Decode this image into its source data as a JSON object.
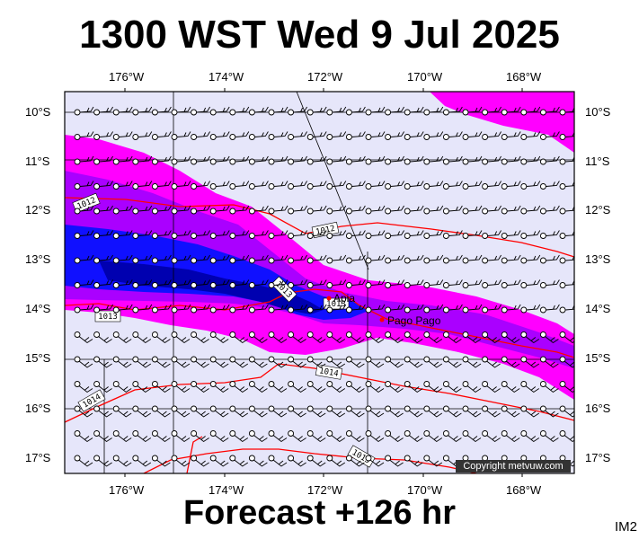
{
  "title": "1300 WST Wed 9 Jul 2025",
  "footer": "Forecast +126 hr",
  "corner_label": "IM2",
  "copyright": "Copyright metvuw.com",
  "map": {
    "lon_labels": [
      "176°W",
      "174°W",
      "172°W",
      "170°W",
      "168°W"
    ],
    "lat_labels": [
      "10°S",
      "11°S",
      "12°S",
      "13°S",
      "14°S",
      "15°S",
      "16°S",
      "17°S"
    ],
    "place_labels": [
      "Apia",
      "Pago Pago"
    ],
    "isobar_labels": [
      "1012",
      "1012",
      "1013",
      "1013",
      "1013",
      "1014",
      "1014",
      "1015"
    ],
    "colors": {
      "light": "#e6e6fa",
      "magenta": "#ff00ff",
      "purple": "#aa00ff",
      "blue": "#1010ff",
      "deep_blue": "#0000b0",
      "isobar": "#ff0000"
    }
  }
}
